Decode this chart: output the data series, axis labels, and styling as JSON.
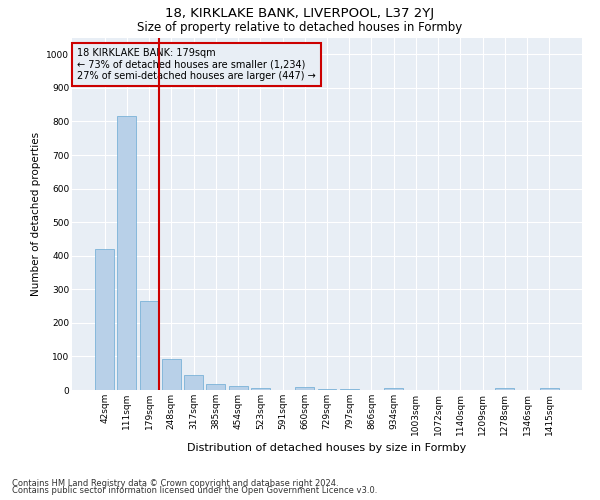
{
  "title": "18, KIRKLAKE BANK, LIVERPOOL, L37 2YJ",
  "subtitle": "Size of property relative to detached houses in Formby",
  "xlabel": "Distribution of detached houses by size in Formby",
  "ylabel": "Number of detached properties",
  "categories": [
    "42sqm",
    "111sqm",
    "179sqm",
    "248sqm",
    "317sqm",
    "385sqm",
    "454sqm",
    "523sqm",
    "591sqm",
    "660sqm",
    "729sqm",
    "797sqm",
    "866sqm",
    "934sqm",
    "1003sqm",
    "1072sqm",
    "1140sqm",
    "1209sqm",
    "1278sqm",
    "1346sqm",
    "1415sqm"
  ],
  "values": [
    420,
    815,
    265,
    92,
    45,
    18,
    13,
    7,
    0,
    10,
    4,
    4,
    0,
    5,
    0,
    0,
    0,
    0,
    7,
    0,
    6
  ],
  "bar_color": "#b8d0e8",
  "bar_edge_color": "#6aaad4",
  "highlight_index": 2,
  "highlight_color": "#cc0000",
  "annotation_title": "18 KIRKLAKE BANK: 179sqm",
  "annotation_line1": "← 73% of detached houses are smaller (1,234)",
  "annotation_line2": "27% of semi-detached houses are larger (447) →",
  "annotation_box_color": "#cc0000",
  "ylim": [
    0,
    1050
  ],
  "yticks": [
    0,
    100,
    200,
    300,
    400,
    500,
    600,
    700,
    800,
    900,
    1000
  ],
  "footnote1": "Contains HM Land Registry data © Crown copyright and database right 2024.",
  "footnote2": "Contains public sector information licensed under the Open Government Licence v3.0.",
  "fig_bg_color": "#ffffff",
  "plot_bg_color": "#e8eef5",
  "grid_color": "#ffffff",
  "title_fontsize": 9.5,
  "subtitle_fontsize": 8.5,
  "ylabel_fontsize": 7.5,
  "xlabel_fontsize": 8,
  "tick_fontsize": 6.5,
  "footnote_fontsize": 6
}
